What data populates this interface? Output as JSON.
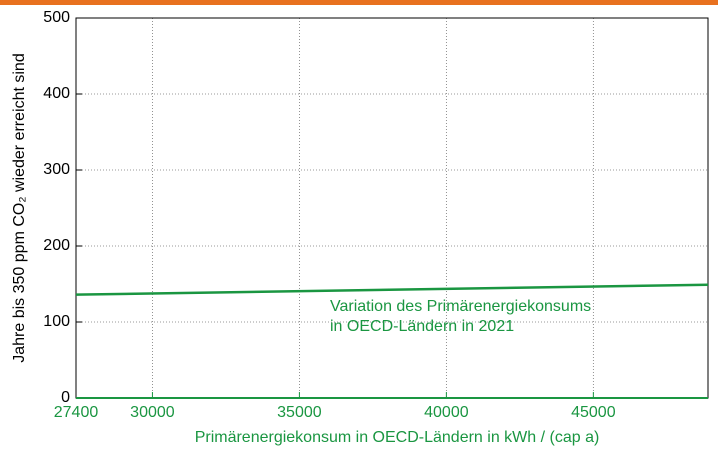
{
  "chart_data": {
    "type": "line",
    "ylabel": "Jahre bis 350 ppm CO₂ wieder erreicht sind",
    "xlabel": "Primärenergiekonsum in OECD-Ländern in kWh / (cap a)",
    "annotation": [
      "Variation des Primärenergiekonsums",
      "in OECD-Ländern in 2021"
    ],
    "x": [
      27400,
      48900
    ],
    "series": [
      {
        "name": "Variation des Primärenergiekonsums in OECD-Ländern in 2021",
        "color": "#1a9641",
        "values": [
          136,
          149
        ]
      }
    ],
    "xlim": [
      27400,
      48900
    ],
    "xticks": [
      27400,
      30000,
      35000,
      40000,
      45000
    ],
    "ylim": [
      0,
      500
    ],
    "yticks": [
      0,
      100,
      200,
      300,
      400,
      500
    ],
    "grid": true
  }
}
